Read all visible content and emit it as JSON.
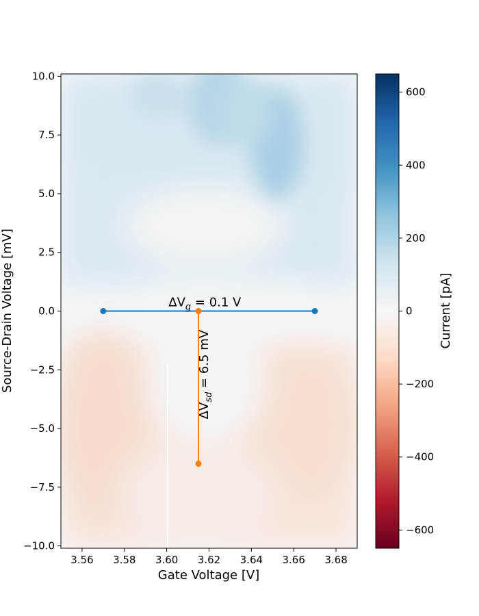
{
  "chart_data": {
    "type": "heatmap",
    "xlabel": "Gate Voltage [V]",
    "ylabel": "Source-Drain Voltage [mV]",
    "xlim": [
      3.55,
      3.69
    ],
    "ylim": [
      -10.1,
      10.1
    ],
    "xticks": [
      3.56,
      3.58,
      3.6,
      3.62,
      3.64,
      3.66,
      3.68
    ],
    "xtick_labels": [
      "3.56",
      "3.58",
      "3.60",
      "3.62",
      "3.64",
      "3.66",
      "3.68"
    ],
    "yticks": [
      10.0,
      7.5,
      5.0,
      2.5,
      0.0,
      -2.5,
      -5.0,
      -7.5,
      -10.0
    ],
    "ytick_labels": [
      "10.0",
      "7.5",
      "5.0",
      "2.5",
      "0.0",
      "−2.5",
      "−5.0",
      "−7.5",
      "−10.0"
    ],
    "grid": false,
    "colormap": "RdBu",
    "colorbar": {
      "label": "Current [pA]",
      "range": [
        -650,
        650
      ],
      "ticks": [
        600,
        400,
        200,
        0,
        -200,
        -400,
        -600
      ],
      "tick_labels": [
        "600",
        "400",
        "200",
        "0",
        "−200",
        "−400",
        "−600"
      ]
    },
    "series": [
      {
        "name": "",
        "color": "#1f77b4",
        "points": [
          {
            "x": 3.57,
            "y": 0.0
          },
          {
            "x": 3.67,
            "y": 0.0
          }
        ]
      },
      {
        "name": "",
        "color": "#ff7f0e",
        "points": [
          {
            "x": 3.615,
            "y": 0.0
          },
          {
            "x": 3.615,
            "y": -6.5
          }
        ]
      }
    ],
    "annotations": [
      {
        "id": "delta-vg",
        "text_prefix": "ΔV",
        "subscript": "g",
        "text_suffix": " = 0.1 V",
        "x": 3.618,
        "y": 0.2,
        "rotation": 0
      },
      {
        "id": "delta-vsd",
        "text_prefix": "ΔV",
        "subscript": "sd",
        "text_suffix": " = 6.5 mV",
        "x": 3.6195,
        "y": -2.7,
        "rotation": -90
      }
    ]
  }
}
